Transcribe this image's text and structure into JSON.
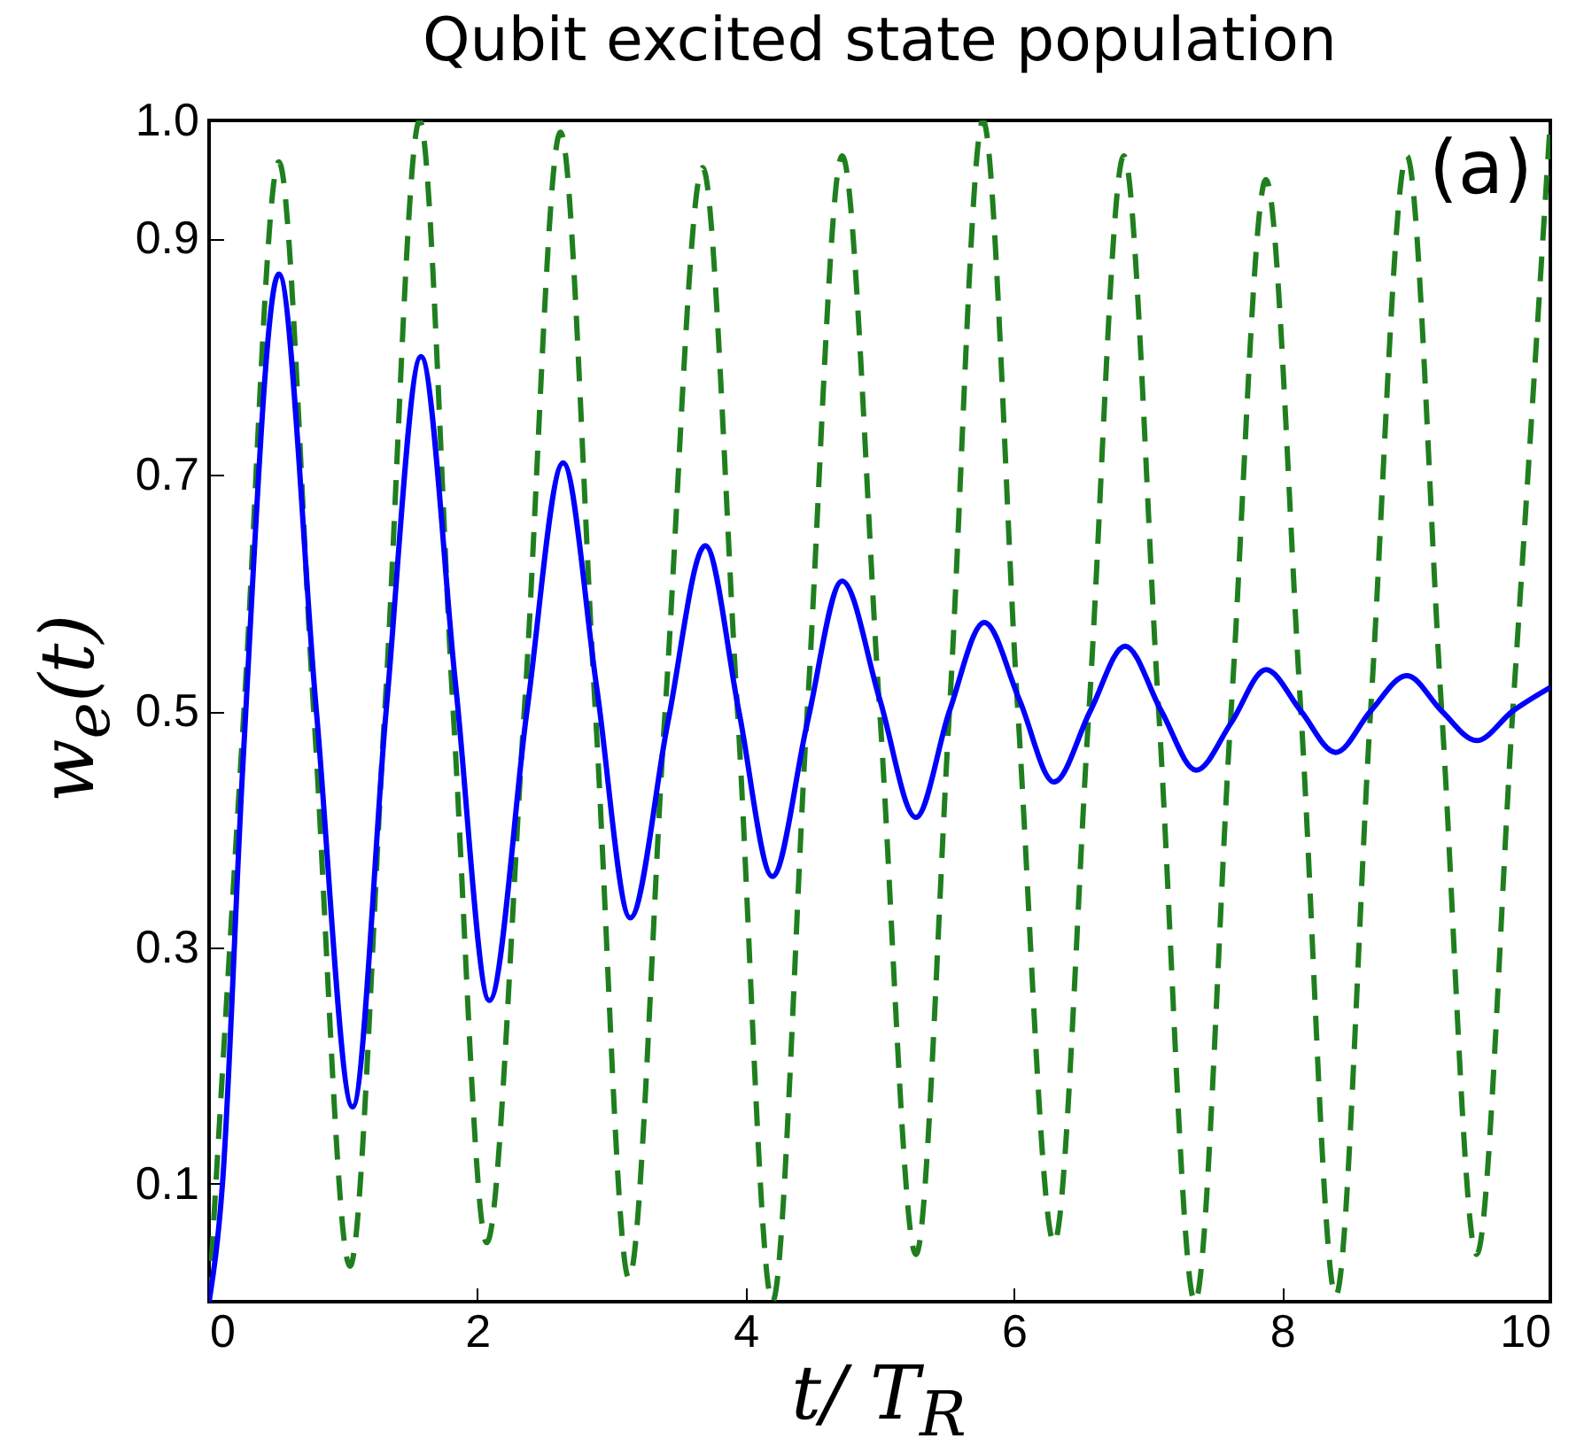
{
  "chart_data": {
    "type": "line",
    "title": "Qubit excited state population",
    "xlabel": "t/ T$_{R}$",
    "ylabel": "w$_{e}$(t)",
    "annotations": [
      "(a)"
    ],
    "xlim": [
      0,
      10
    ],
    "ylim": [
      0,
      1
    ],
    "xticks": [
      0,
      2,
      4,
      6,
      8,
      10
    ],
    "yticks": [
      0.1,
      0.3,
      0.5,
      0.7,
      0.9,
      {
        "value": 1,
        "label": "1.0"
      }
    ],
    "grid": false,
    "marker": "none",
    "series": [
      {
        "color": "#1f7f1f",
        "line_style": "dashed",
        "x": [
          0,
          0.26,
          0.52,
          0.78,
          1.05,
          1.31,
          1.57,
          1.82,
          2.07,
          2.35,
          2.62,
          2.88,
          3.13,
          3.4,
          3.68,
          3.94,
          4.2,
          4.46,
          4.72,
          5.0,
          5.27,
          5.52,
          5.77,
          6.03,
          6.3,
          6.56,
          6.82,
          7.08,
          7.35,
          7.62,
          7.88,
          8.14,
          8.4,
          8.66,
          8.93,
          9.19,
          9.45,
          9.72,
          10
        ],
        "values": [
          0,
          0.5,
          0.965,
          0.5,
          0.03,
          0.5,
          1.0,
          0.5,
          0.05,
          0.5,
          0.99,
          0.5,
          0.02,
          0.5,
          0.96,
          0.5,
          0.0,
          0.5,
          0.97,
          0.5,
          0.04,
          0.5,
          1.0,
          0.5,
          0.05,
          0.5,
          0.97,
          0.5,
          0.0,
          0.5,
          0.95,
          0.5,
          0.005,
          0.5,
          0.97,
          0.5,
          0.04,
          0.5,
          1.0
        ]
      },
      {
        "color": "#0000ff",
        "line_style": "solid",
        "x": [
          0,
          0.1,
          0.25,
          0.52,
          0.8,
          1.07,
          1.32,
          1.58,
          1.84,
          2.09,
          2.37,
          2.64,
          2.89,
          3.14,
          3.42,
          3.7,
          3.95,
          4.2,
          4.46,
          4.72,
          5.0,
          5.27,
          5.52,
          5.78,
          6.04,
          6.3,
          6.57,
          6.83,
          7.1,
          7.36,
          7.62,
          7.88,
          8.14,
          8.4,
          8.66,
          8.93,
          9.19,
          9.45,
          9.72,
          10
        ],
        "values": [
          0,
          0.1,
          0.45,
          0.87,
          0.5,
          0.165,
          0.5,
          0.8,
          0.52,
          0.255,
          0.5,
          0.71,
          0.52,
          0.325,
          0.49,
          0.64,
          0.5,
          0.36,
          0.49,
          0.61,
          0.51,
          0.41,
          0.5,
          0.575,
          0.51,
          0.44,
          0.5,
          0.555,
          0.5,
          0.45,
          0.49,
          0.535,
          0.5,
          0.465,
          0.5,
          0.53,
          0.5,
          0.475,
          0.5,
          0.52
        ]
      }
    ]
  }
}
